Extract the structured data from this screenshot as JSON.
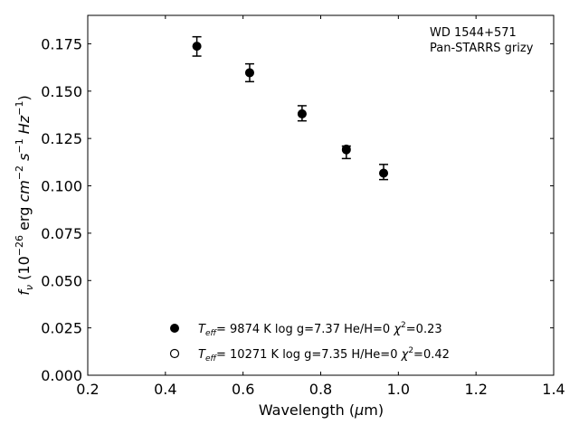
{
  "chart_data": {
    "type": "scatter",
    "xlabel": "Wavelength (μm)",
    "ylabel": "f_ν (10^-26 erg cm^-2 s^-1 Hz^-1)",
    "xlim": [
      0.2,
      1.4
    ],
    "ylim": [
      0.0,
      0.19
    ],
    "x_ticks": [
      0.2,
      0.4,
      0.6,
      0.8,
      1.0,
      1.2,
      1.4
    ],
    "x_tick_labels": [
      "0.2",
      "0.4",
      "0.6",
      "0.8",
      "1.0",
      "1.2",
      "1.4"
    ],
    "y_ticks": [
      0.0,
      0.025,
      0.05,
      0.075,
      0.1,
      0.125,
      0.15,
      0.175
    ],
    "y_tick_labels": [
      "0.000",
      "0.025",
      "0.050",
      "0.075",
      "0.100",
      "0.125",
      "0.150",
      "0.175"
    ],
    "annotation_lines": [
      "WD 1544+571",
      "Pan-STARRS grizy"
    ],
    "observed": {
      "x": [
        0.481,
        0.617,
        0.752,
        0.866,
        0.962
      ],
      "y": [
        0.1737,
        0.1597,
        0.1383,
        0.1177,
        0.1073
      ],
      "yerr_low": [
        0.0052,
        0.0047,
        0.004,
        0.0033,
        0.004
      ],
      "yerr_high": [
        0.005,
        0.0047,
        0.004,
        0.0033,
        0.004
      ]
    },
    "series": [
      {
        "marker": "filled-circle",
        "x": [
          0.481,
          0.617,
          0.752,
          0.866,
          0.962
        ],
        "y": [
          0.1737,
          0.1597,
          0.138,
          0.119,
          0.1067
        ]
      },
      {
        "marker": "open-circle",
        "x": [
          0.481,
          0.617,
          0.752,
          0.866,
          0.962
        ],
        "y": [
          0.1737,
          0.1597,
          0.138,
          0.1195,
          0.1067
        ]
      }
    ],
    "legend": [
      {
        "teff": "9874 K",
        "logg": "log g=7.37",
        "comp": "He/H=0",
        "chi2": "=0.23",
        "marker": "filled-circle"
      },
      {
        "teff": "10271 K",
        "logg": "log g=7.35",
        "comp": "H/He=0",
        "chi2": "=0.42",
        "marker": "open-circle"
      }
    ],
    "legend_position": "lower-left",
    "grid": false
  }
}
